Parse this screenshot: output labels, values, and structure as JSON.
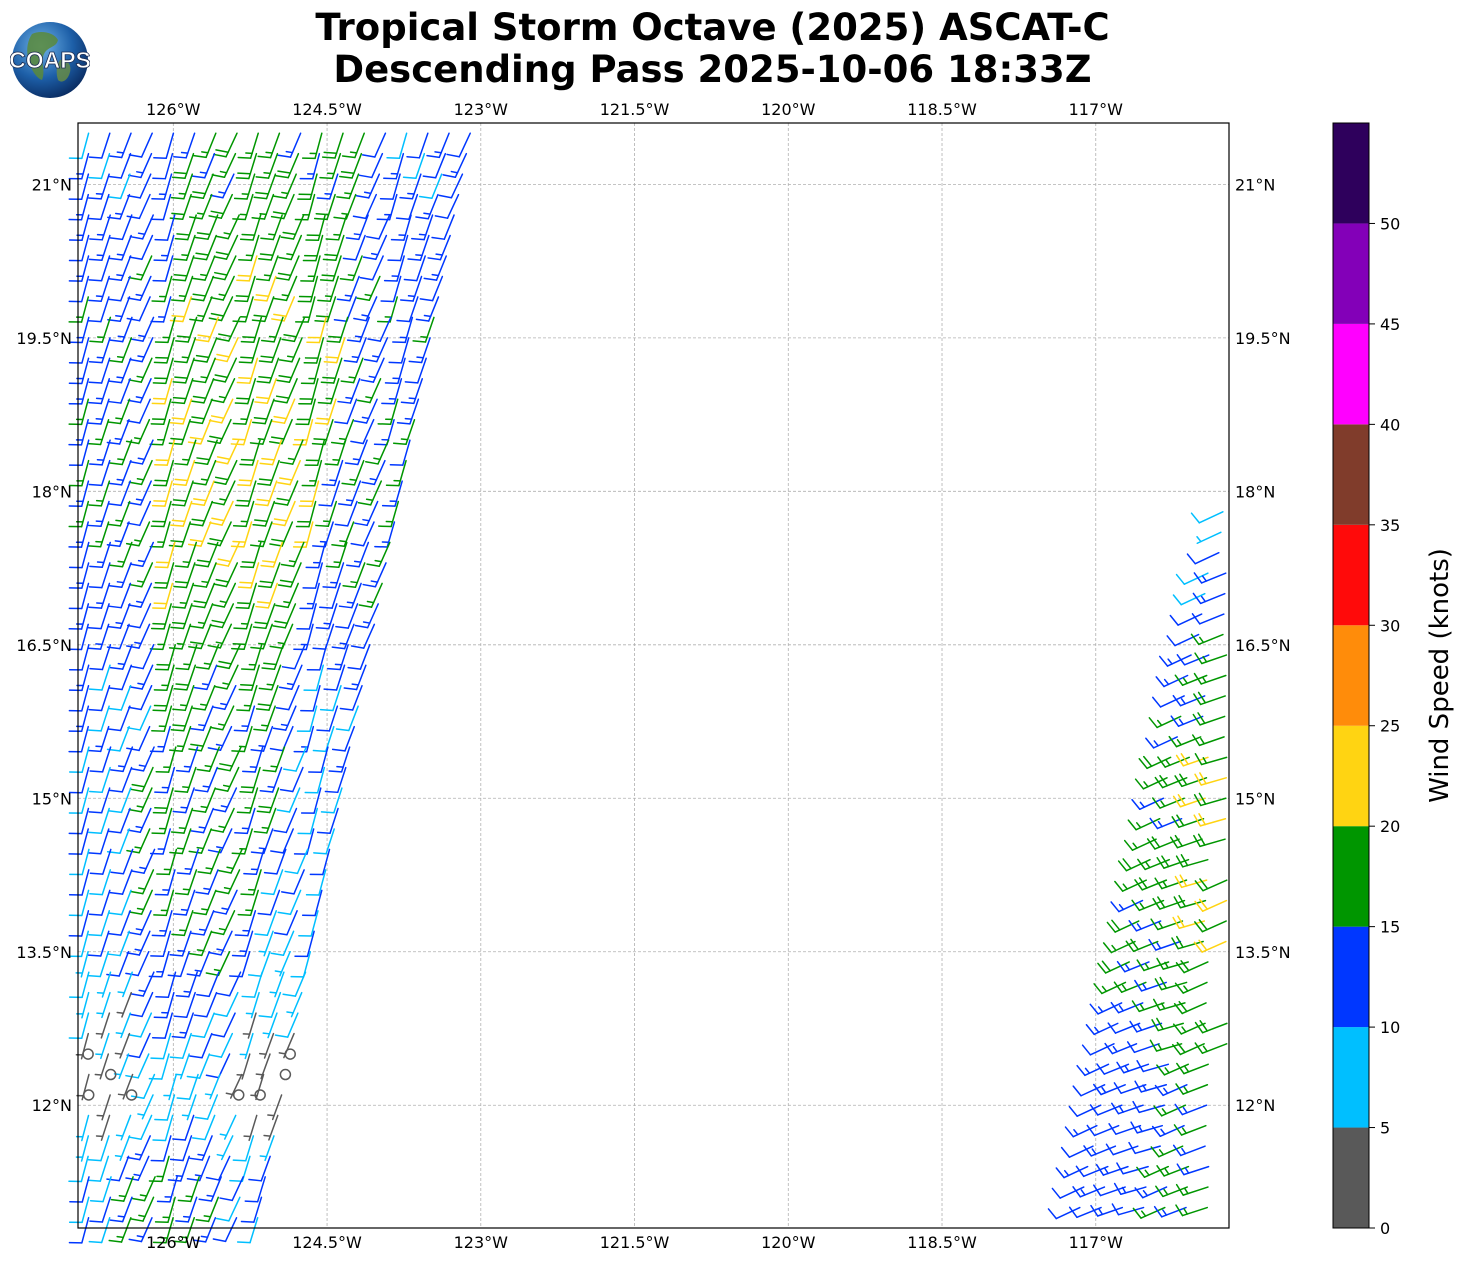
{
  "title_line1": "Tropical Storm Octave (2025) ASCAT-C",
  "title_line2": "Descending Pass 2025-10-06 18:33Z",
  "logo_text": "COAPS",
  "lon_ticks": [
    "126°W",
    "124.5°W",
    "123°W",
    "121.5°W",
    "120°W",
    "118.5°W",
    "117°W"
  ],
  "lon_values": [
    -126,
    -124.5,
    -123,
    -121.5,
    -120,
    -118.5,
    -117
  ],
  "lat_ticks": [
    "21°N",
    "19.5°N",
    "18°N",
    "16.5°N",
    "15°N",
    "13.5°N",
    "12°N"
  ],
  "lat_values": [
    21,
    19.5,
    18,
    16.5,
    15,
    13.5,
    12
  ],
  "extent": {
    "lon_min": -126.93,
    "lon_max": -115.7,
    "lat_min": 10.8,
    "lat_max": 21.6
  },
  "colorbar": {
    "label": "Wind Speed (knots)",
    "ticks": [
      "0",
      "5",
      "10",
      "15",
      "20",
      "25",
      "30",
      "35",
      "40",
      "45",
      "50"
    ],
    "tick_values": [
      0,
      5,
      10,
      15,
      20,
      25,
      30,
      35,
      40,
      45,
      50
    ],
    "max": 55,
    "bins": [
      {
        "from": 0,
        "to": 5,
        "color": "#595959"
      },
      {
        "from": 5,
        "to": 10,
        "color": "#00bfff"
      },
      {
        "from": 10,
        "to": 15,
        "color": "#0037ff"
      },
      {
        "from": 15,
        "to": 20,
        "color": "#009600"
      },
      {
        "from": 20,
        "to": 25,
        "color": "#ffd412"
      },
      {
        "from": 25,
        "to": 30,
        "color": "#ff8c0a"
      },
      {
        "from": 30,
        "to": 35,
        "color": "#ff0a0a"
      },
      {
        "from": 35,
        "to": 40,
        "color": "#803c2b"
      },
      {
        "from": 40,
        "to": 45,
        "color": "#ff00ff"
      },
      {
        "from": 45,
        "to": 50,
        "color": "#8300b8"
      },
      {
        "from": 50,
        "to": 55,
        "color": "#2e005c"
      }
    ]
  },
  "swaths": [
    {
      "name": "west-swath",
      "left_edge": [
        [
          -126.93,
          21.6
        ],
        [
          -126.93,
          10.8
        ]
      ],
      "right_edge": [
        [
          -122.98,
          21.6
        ],
        [
          -124.8,
          12.3
        ]
      ],
      "direction_deg": 200,
      "speeds_by_lat": [
        [
          21.6,
          13
        ],
        [
          20.5,
          15
        ],
        [
          19,
          16
        ],
        [
          17.5,
          16
        ],
        [
          16,
          13
        ],
        [
          14,
          12
        ],
        [
          13,
          8
        ],
        [
          12.1,
          4
        ],
        [
          11.5,
          12
        ]
      ]
    },
    {
      "name": "east-swath",
      "left_edge": [
        [
          -115.85,
          17.9
        ],
        [
          -117.3,
          10.8
        ]
      ],
      "right_edge": [
        [
          -115.65,
          17.9
        ],
        [
          -115.6,
          10.8
        ]
      ],
      "direction_deg": 250,
      "speeds_by_lat": [
        [
          17.9,
          8
        ],
        [
          16.8,
          12
        ],
        [
          15.6,
          17
        ],
        [
          13.7,
          18
        ],
        [
          12.3,
          13
        ],
        [
          11,
          13
        ]
      ]
    }
  ]
}
